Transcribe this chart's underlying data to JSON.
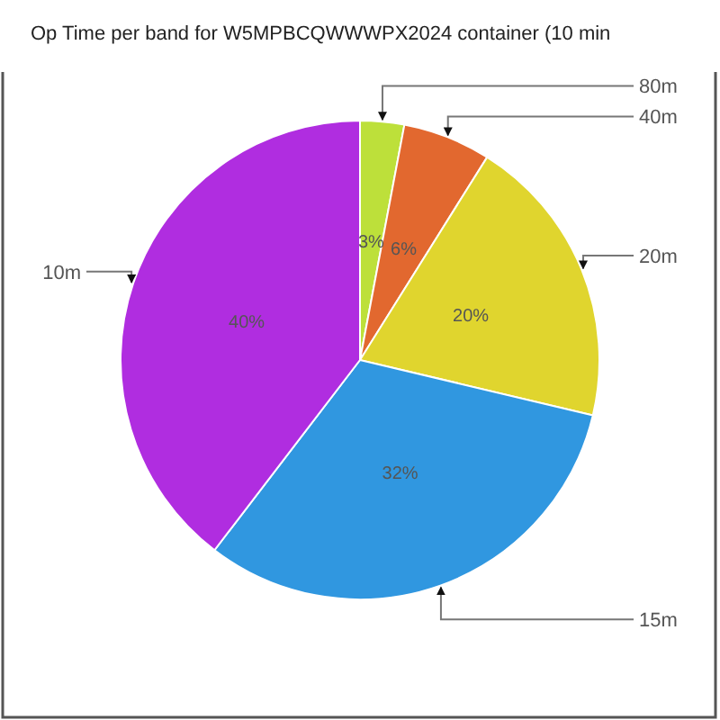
{
  "chart_data": {
    "type": "pie",
    "title": "Op Time per band for W5MPBCQWWWPX2024 container (10 min",
    "categories": [
      "80m",
      "40m",
      "20m",
      "15m",
      "10m"
    ],
    "values": [
      3,
      6,
      20,
      32,
      40
    ],
    "colors": [
      "#bde03a",
      "#e2682f",
      "#e0d52e",
      "#3097e0",
      "#b02de0"
    ],
    "value_labels": [
      "3%",
      "6%",
      "20%",
      "32%",
      "40%"
    ]
  }
}
